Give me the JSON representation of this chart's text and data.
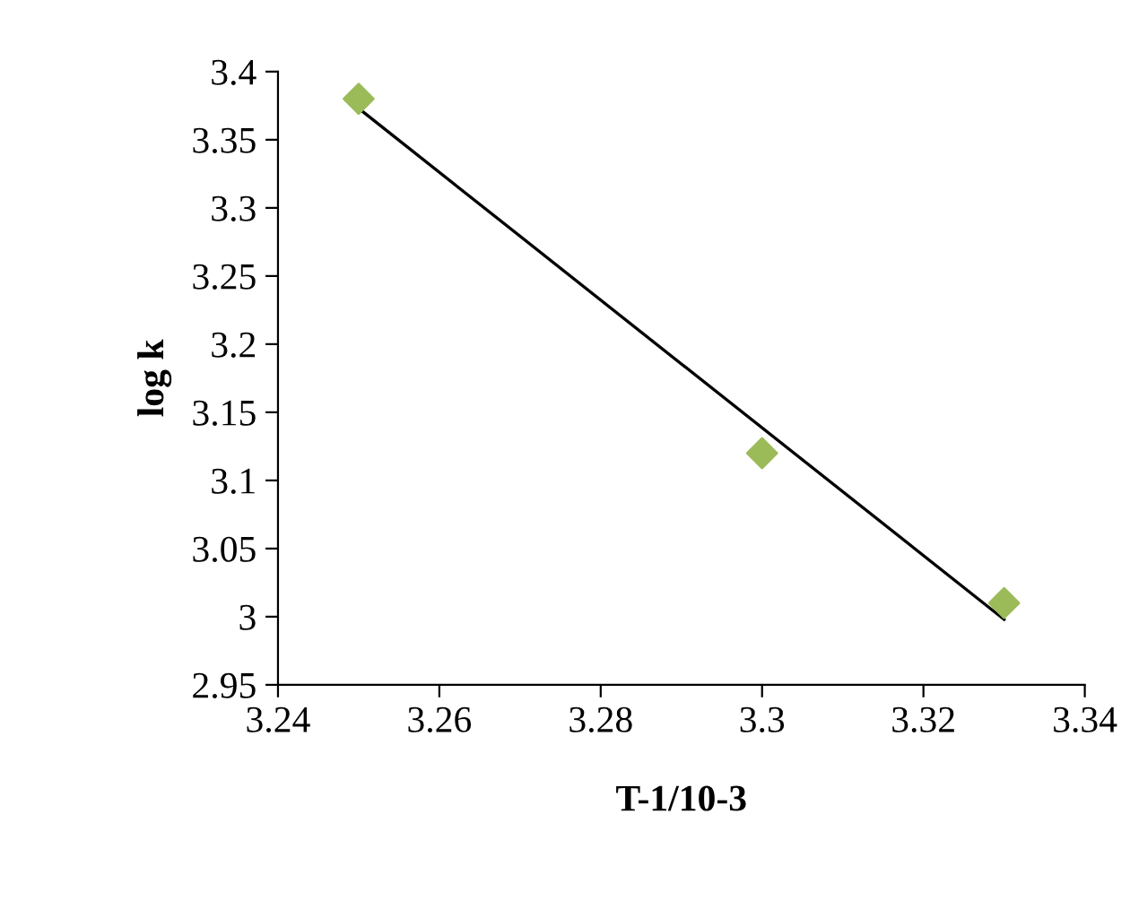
{
  "chart_data": {
    "type": "scatter",
    "xlabel": "T-1/10-3",
    "ylabel": "log k",
    "xlim": [
      3.24,
      3.34
    ],
    "ylim": [
      2.95,
      3.4
    ],
    "xticks": [
      3.24,
      3.26,
      3.28,
      3.3,
      3.32,
      3.34
    ],
    "yticks": [
      2.95,
      3,
      3.05,
      3.1,
      3.15,
      3.2,
      3.25,
      3.3,
      3.35,
      3.4
    ],
    "grid": false,
    "legend": false,
    "series": [
      {
        "color": "#9bbb59",
        "marker": "diamond",
        "x": [
          3.25,
          3.3,
          3.33
        ],
        "values": [
          3.38,
          3.12,
          3.01
        ]
      },
      {
        "type": "line",
        "color": "#000000",
        "marker": "none",
        "line_style": "solid",
        "x": [
          3.25,
          3.33
        ],
        "values": [
          3.373,
          2.998
        ]
      }
    ]
  }
}
